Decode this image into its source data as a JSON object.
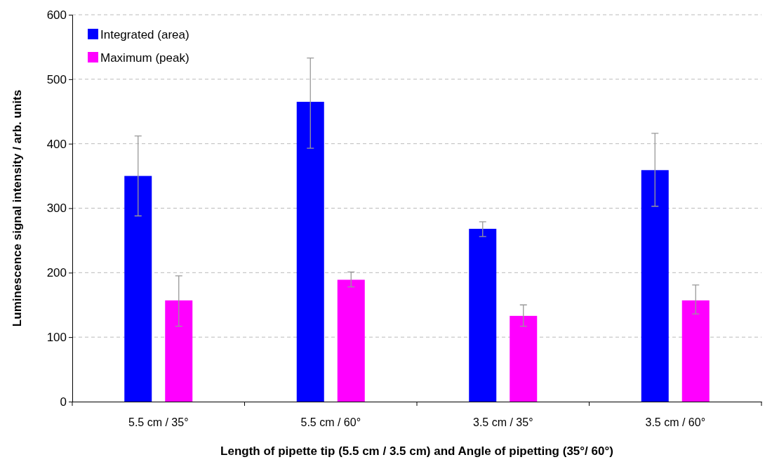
{
  "chart_data": {
    "type": "bar",
    "xlabel": "Length of pipette tip (5.5 cm / 3.5 cm) and Angle of pipetting (35°/ 60°)",
    "ylabel": "Luminescence signal intensity / arb. units",
    "categories": [
      "5.5 cm / 35°",
      "5.5 cm /  60°",
      "3.5 cm / 35°",
      "3.5 cm /  60°"
    ],
    "series": [
      {
        "name": "Integrated (area)",
        "color": "#0000ff",
        "values": [
          350,
          465,
          268,
          359
        ],
        "errors": [
          [
            288,
            412
          ],
          [
            393,
            533
          ],
          [
            256,
            279
          ],
          [
            303,
            416
          ]
        ]
      },
      {
        "name": "Maximum (peak)",
        "color": "#ff00ff",
        "values": [
          157,
          189,
          133,
          157
        ],
        "errors": [
          [
            117,
            195
          ],
          [
            178,
            201
          ],
          [
            117,
            150
          ],
          [
            136,
            181
          ]
        ]
      }
    ],
    "ylim": [
      0,
      600
    ],
    "yticks": [
      0,
      100,
      200,
      300,
      400,
      500,
      600
    ],
    "grid": "y",
    "legend": "top left"
  }
}
